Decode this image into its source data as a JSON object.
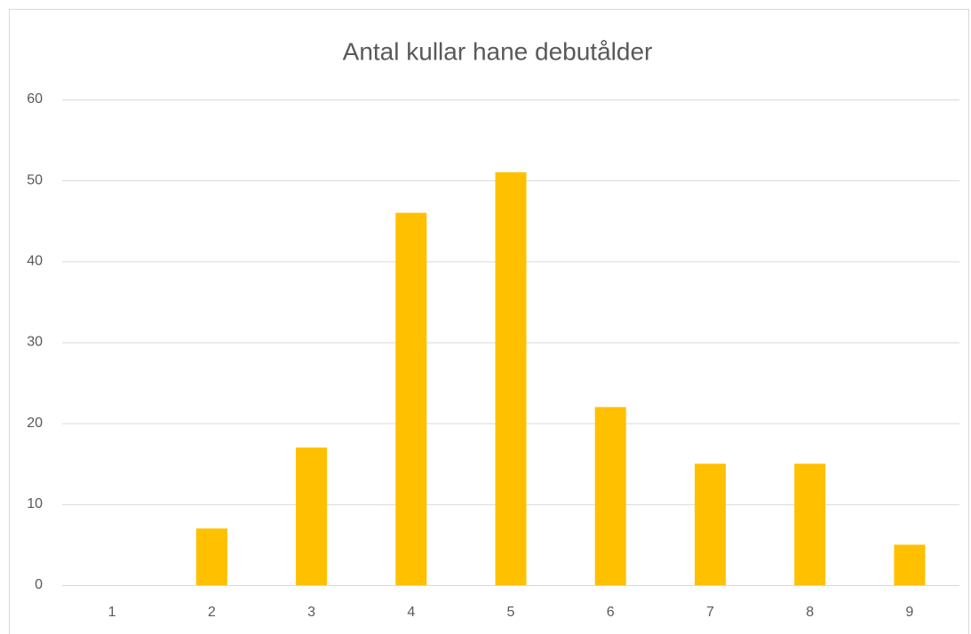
{
  "chart_data": {
    "type": "bar",
    "title": "Antal kullar hane debutålder",
    "categories": [
      "1",
      "2",
      "3",
      "4",
      "5",
      "6",
      "7",
      "8",
      "9"
    ],
    "values": [
      0,
      7,
      17,
      46,
      51,
      22,
      15,
      15,
      5
    ],
    "color": "#ffc000",
    "ylim": [
      0,
      60
    ],
    "yticks": [
      0,
      10,
      20,
      30,
      40,
      50,
      60
    ],
    "grid": true
  }
}
